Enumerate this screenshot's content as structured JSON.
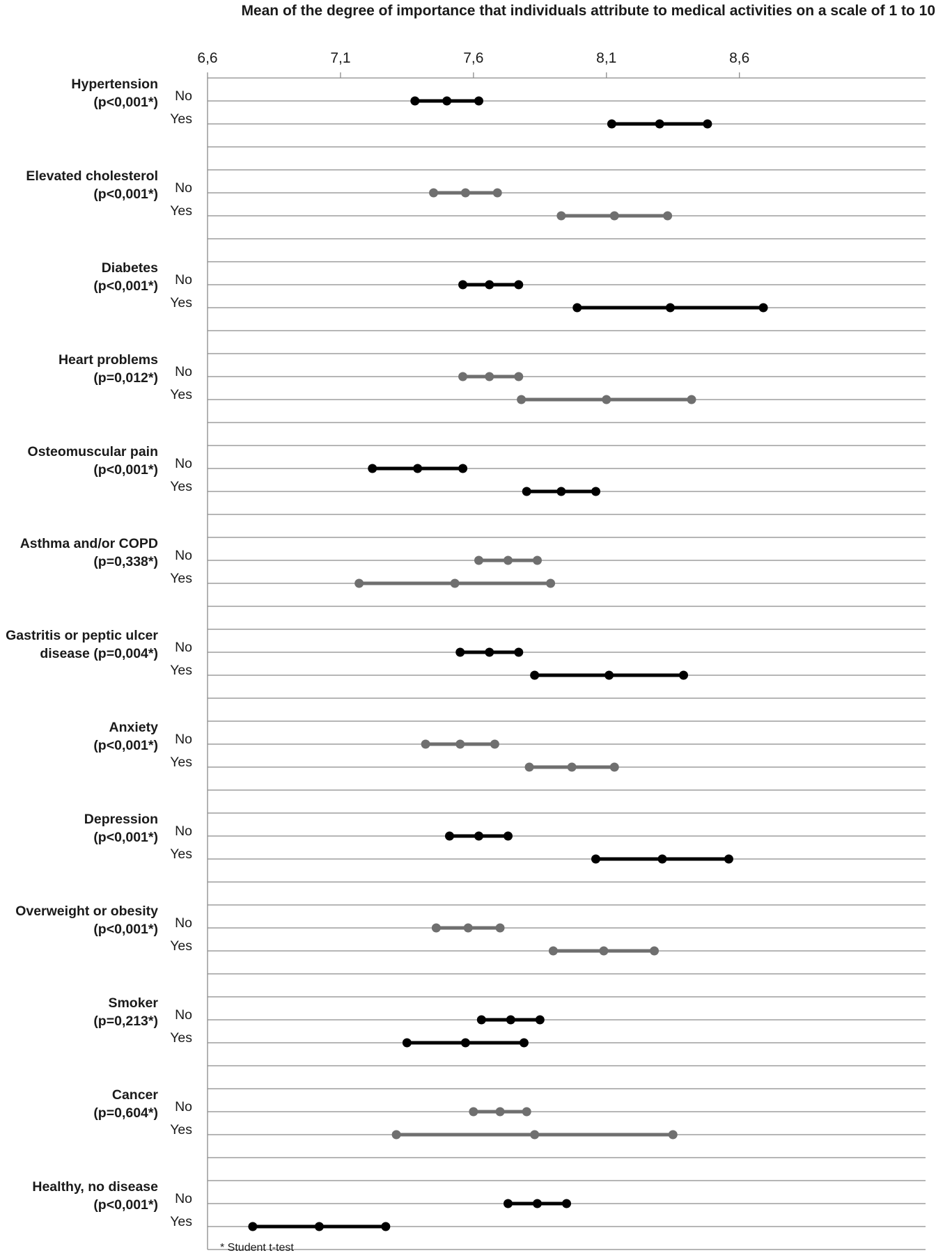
{
  "chart_data": {
    "type": "dot-range",
    "title": "Mean of the degree of importance that individuals attribute to medical activities on a scale of 1 to 10",
    "x_ticks": [
      "6,6",
      "7,1",
      "7,6",
      "8,1",
      "8,6"
    ],
    "x_tick_values": [
      6.6,
      7.1,
      7.6,
      8.1,
      8.6
    ],
    "xlim": [
      6.6,
      9.3
    ],
    "grid": true,
    "colors": {
      "dark": "#000000",
      "gray": "#6f6f6f"
    },
    "series_labels": [
      "No",
      "Yes"
    ],
    "groups": [
      {
        "label_lines": [
          "Hypertension",
          "(p<0,001*)"
        ],
        "color": "dark",
        "no": {
          "low": 7.38,
          "mean": 7.5,
          "high": 7.62
        },
        "yes": {
          "low": 8.12,
          "mean": 8.3,
          "high": 8.48
        }
      },
      {
        "label_lines": [
          "Elevated cholesterol",
          "(p<0,001*)"
        ],
        "color": "gray",
        "no": {
          "low": 7.45,
          "mean": 7.57,
          "high": 7.69
        },
        "yes": {
          "low": 7.93,
          "mean": 8.13,
          "high": 8.33
        }
      },
      {
        "label_lines": [
          "Diabetes",
          "(p<0,001*)"
        ],
        "color": "dark",
        "no": {
          "low": 7.56,
          "mean": 7.66,
          "high": 7.77
        },
        "yes": {
          "low": 7.99,
          "mean": 8.34,
          "high": 8.69
        }
      },
      {
        "label_lines": [
          "Heart problems",
          "(p=0,012*)"
        ],
        "color": "gray",
        "no": {
          "low": 7.56,
          "mean": 7.66,
          "high": 7.77
        },
        "yes": {
          "low": 7.78,
          "mean": 8.1,
          "high": 8.42
        }
      },
      {
        "label_lines": [
          "Osteomuscular pain",
          "(p<0,001*)"
        ],
        "color": "dark",
        "no": {
          "low": 7.22,
          "mean": 7.39,
          "high": 7.56
        },
        "yes": {
          "low": 7.8,
          "mean": 7.93,
          "high": 8.06
        }
      },
      {
        "label_lines": [
          "Asthma and/or COPD",
          "(p=0,338*)"
        ],
        "color": "gray",
        "no": {
          "low": 7.62,
          "mean": 7.73,
          "high": 7.84
        },
        "yes": {
          "low": 7.17,
          "mean": 7.53,
          "high": 7.89
        }
      },
      {
        "label_lines": [
          "Gastritis or peptic ulcer",
          "disease (p=0,004*)"
        ],
        "color": "dark",
        "no": {
          "low": 7.55,
          "mean": 7.66,
          "high": 7.77
        },
        "yes": {
          "low": 7.83,
          "mean": 8.11,
          "high": 8.39
        }
      },
      {
        "label_lines": [
          "Anxiety",
          "(p<0,001*)"
        ],
        "color": "gray",
        "no": {
          "low": 7.42,
          "mean": 7.55,
          "high": 7.68
        },
        "yes": {
          "low": 7.81,
          "mean": 7.97,
          "high": 8.13
        }
      },
      {
        "label_lines": [
          "Depression",
          "(p<0,001*)"
        ],
        "color": "dark",
        "no": {
          "low": 7.51,
          "mean": 7.62,
          "high": 7.73
        },
        "yes": {
          "low": 8.06,
          "mean": 8.31,
          "high": 8.56
        }
      },
      {
        "label_lines": [
          "Overweight or obesity",
          "(p<0,001*)"
        ],
        "color": "gray",
        "no": {
          "low": 7.46,
          "mean": 7.58,
          "high": 7.7
        },
        "yes": {
          "low": 7.9,
          "mean": 8.09,
          "high": 8.28
        }
      },
      {
        "label_lines": [
          "Smoker",
          "(p=0,213*)"
        ],
        "color": "dark",
        "no": {
          "low": 7.63,
          "mean": 7.74,
          "high": 7.85
        },
        "yes": {
          "low": 7.35,
          "mean": 7.57,
          "high": 7.79
        }
      },
      {
        "label_lines": [
          "Cancer",
          "(p=0,604*)"
        ],
        "color": "gray",
        "no": {
          "low": 7.6,
          "mean": 7.7,
          "high": 7.8
        },
        "yes": {
          "low": 7.31,
          "mean": 7.83,
          "high": 8.35
        }
      },
      {
        "label_lines": [
          "Healthy, no disease",
          "(p<0,001*)"
        ],
        "color": "dark",
        "no": {
          "low": 7.73,
          "mean": 7.84,
          "high": 7.95
        },
        "yes": {
          "low": 6.77,
          "mean": 7.02,
          "high": 7.27
        }
      }
    ],
    "footnote": "* Student t-test"
  }
}
